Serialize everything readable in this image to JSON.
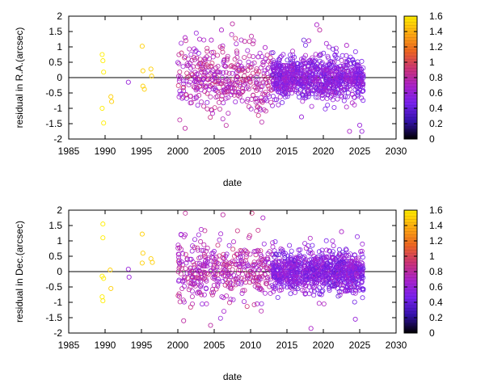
{
  "chart_data": [
    {
      "type": "scatter",
      "xlabel": "date",
      "ylabel": "residual in R.A.(arcsec)",
      "xlim": [
        1985,
        2030
      ],
      "ylim": [
        -2,
        2
      ],
      "x_ticks": [
        "1985",
        "1990",
        "1995",
        "2000",
        "2005",
        "2010",
        "2015",
        "2020",
        "2025",
        "2030"
      ],
      "y_ticks": [
        "-2",
        "-1.5",
        "-1",
        "-0.5",
        "0",
        "0.5",
        "1",
        "1.5",
        "2"
      ],
      "zero_line": true,
      "colorbar": {
        "range": [
          0,
          1.6
        ],
        "ticks": [
          "0",
          "0.2",
          "0.4",
          "0.6",
          "0.8",
          "1",
          "1.2",
          "1.4",
          "1.6"
        ],
        "palette": [
          "#000000",
          "#3311aa",
          "#7722ee",
          "#aa22cc",
          "#cc3377",
          "#ee6622",
          "#ffaa11",
          "#ffee00"
        ]
      },
      "points": [
        [
          1989.6,
          0.75,
          1.6
        ],
        [
          1989.7,
          0.55,
          1.6
        ],
        [
          1989.8,
          0.18,
          1.6
        ],
        [
          1989.6,
          -1.0,
          1.6
        ],
        [
          1989.8,
          -1.48,
          1.6
        ],
        [
          1990.8,
          -0.62,
          1.5
        ],
        [
          1990.9,
          -0.78,
          1.5
        ],
        [
          1993.2,
          -0.15,
          0.6
        ],
        [
          1995.1,
          1.02,
          1.5
        ],
        [
          1995.2,
          0.22,
          1.5
        ],
        [
          1995.2,
          -0.28,
          1.5
        ],
        [
          1995.4,
          -0.38,
          1.5
        ],
        [
          1996.3,
          0.28,
          1.5
        ],
        [
          1996.4,
          0.05,
          1.5
        ],
        [
          2000.5,
          0.8,
          0.9
        ],
        [
          2001.0,
          1.3,
          0.7
        ],
        [
          2001.0,
          -1.65,
          0.8
        ],
        [
          2003.0,
          1.25,
          0.7
        ],
        [
          2004.6,
          1.22,
          0.7
        ],
        [
          2006.0,
          1.55,
          0.7
        ],
        [
          2007.5,
          1.75,
          0.8
        ],
        [
          2009.2,
          1.18,
          0.8
        ],
        [
          2012.0,
          0.98,
          0.7
        ],
        [
          2018.0,
          1.2,
          0.7
        ],
        [
          2019.1,
          1.72,
          0.7
        ],
        [
          2019.5,
          1.55,
          0.8
        ],
        [
          2023.2,
          1.05,
          0.7
        ],
        [
          2025.0,
          -1.55,
          0.6
        ],
        [
          2025.3,
          -1.75,
          0.6
        ],
        [
          2023.6,
          -1.75,
          0.7
        ],
        [
          2017.0,
          -1.28,
          0.6
        ]
      ],
      "dense_clusters": [
        {
          "x_range": [
            2000,
            2013
          ],
          "y_sigma": 0.5,
          "count": 420,
          "color": 0.75
        },
        {
          "x_range": [
            2013,
            2025.5
          ],
          "y_sigma": 0.35,
          "count": 900,
          "color": 0.55
        }
      ]
    },
    {
      "type": "scatter",
      "xlabel": "date",
      "ylabel": "residual in Dec.(arcsec)",
      "xlim": [
        1985,
        2030
      ],
      "ylim": [
        -2,
        2
      ],
      "x_ticks": [
        "1985",
        "1990",
        "1995",
        "2000",
        "2005",
        "2010",
        "2015",
        "2020",
        "2025",
        "2030"
      ],
      "y_ticks": [
        "-2",
        "-1.5",
        "-1",
        "-0.5",
        "0",
        "0.5",
        "1",
        "1.5",
        "2"
      ],
      "zero_line": true,
      "colorbar": {
        "range": [
          0,
          1.6
        ],
        "ticks": [
          "0",
          "0.2",
          "0.4",
          "0.6",
          "0.8",
          "1",
          "1.2",
          "1.4",
          "1.6"
        ],
        "palette": [
          "#000000",
          "#3311aa",
          "#7722ee",
          "#aa22cc",
          "#cc3377",
          "#ee6622",
          "#ffaa11",
          "#ffee00"
        ]
      },
      "points": [
        [
          1989.7,
          1.55,
          1.6
        ],
        [
          1989.7,
          1.1,
          1.6
        ],
        [
          1989.6,
          -0.15,
          1.6
        ],
        [
          1989.8,
          -0.22,
          1.6
        ],
        [
          1989.6,
          -0.82,
          1.6
        ],
        [
          1989.7,
          -0.95,
          1.6
        ],
        [
          1990.7,
          0.05,
          1.5
        ],
        [
          1990.8,
          -0.55,
          1.5
        ],
        [
          1993.2,
          0.08,
          0.6
        ],
        [
          1993.3,
          -0.18,
          0.6
        ],
        [
          1995.1,
          1.22,
          1.5
        ],
        [
          1995.2,
          0.6,
          1.5
        ],
        [
          1995.1,
          0.28,
          1.5
        ],
        [
          1996.3,
          0.42,
          1.5
        ],
        [
          1996.5,
          0.3,
          1.5
        ],
        [
          2000.8,
          -1.6,
          0.8
        ],
        [
          2001.0,
          1.2,
          0.7
        ],
        [
          2004.5,
          -1.75,
          0.8
        ],
        [
          2006.2,
          1.85,
          0.8
        ],
        [
          2011.7,
          1.75,
          0.7
        ],
        [
          2018.3,
          -1.85,
          0.7
        ],
        [
          2022.5,
          1.3,
          0.7
        ],
        [
          2024.4,
          -1.55,
          0.6
        ]
      ],
      "dense_clusters": [
        {
          "x_range": [
            2000,
            2013
          ],
          "y_sigma": 0.5,
          "count": 420,
          "color": 0.75
        },
        {
          "x_range": [
            2013,
            2025.5
          ],
          "y_sigma": 0.35,
          "count": 900,
          "color": 0.55
        }
      ]
    }
  ]
}
